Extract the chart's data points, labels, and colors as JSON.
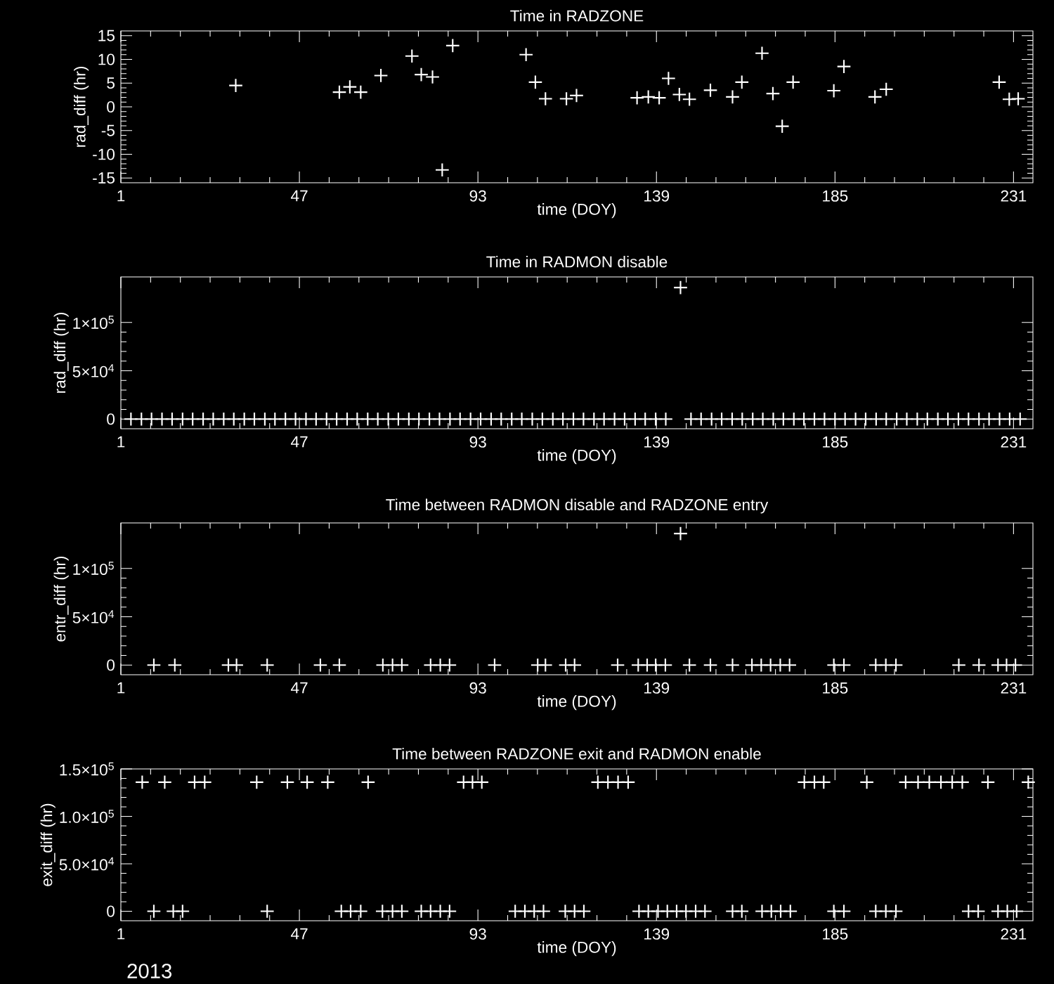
{
  "chart_data": [
    {
      "type": "scatter",
      "title": "Time in RADZONE",
      "xlabel": "time (DOY)",
      "ylabel": "rad_diff (hr)",
      "marker": "cross",
      "xlim": [
        1,
        236
      ],
      "ylim": [
        -16,
        16
      ],
      "xticks": [
        1,
        47,
        93,
        139,
        185,
        231
      ],
      "yticks": [
        -15,
        -10,
        -5,
        0,
        5,
        10,
        15
      ],
      "series": [
        {
          "color": "#ffffff",
          "x": [
            30.6,
            57.3,
            60.0,
            62.8,
            68.0,
            76.0,
            78.4,
            81.3,
            83.8,
            86.5,
            105.4,
            107.8,
            110.4,
            115.8,
            118.4,
            134.0,
            136.9,
            139.7,
            142.1,
            144.9,
            147.5,
            152.9,
            158.6,
            161.0,
            166.2,
            169.0,
            171.4,
            174.2,
            184.7,
            187.3,
            195.3,
            198.2,
            227.3,
            229.9,
            232.2
          ],
          "values": [
            4.5,
            3.1,
            4.2,
            3.1,
            6.6,
            10.7,
            6.8,
            6.3,
            -13.3,
            12.9,
            11.0,
            5.2,
            1.7,
            1.7,
            2.4,
            1.9,
            2.1,
            1.9,
            6.0,
            2.6,
            1.6,
            3.5,
            2.1,
            5.2,
            11.3,
            2.8,
            -4.1,
            5.2,
            3.4,
            8.5,
            2.1,
            3.7,
            5.2,
            1.6,
            1.7
          ]
        }
      ]
    },
    {
      "type": "scatter",
      "title": "Time in RADMON disable",
      "xlabel": "time (DOY)",
      "ylabel": "rad_diff (hr)",
      "marker": "cross",
      "xlim": [
        1,
        236
      ],
      "ylim": [
        -10000,
        147000
      ],
      "xticks": [
        1,
        47,
        93,
        139,
        185,
        231
      ],
      "yticks": [
        0,
        {
          "value": 50000,
          "label": "5×10$^{4}$"
        },
        {
          "value": 100000,
          "label": "1×10$^{5}$"
        }
      ],
      "series": [
        {
          "color": "#ffffff",
          "x": [
            3.6,
            6.3,
            8.9,
            11.6,
            14.2,
            16.9,
            19.5,
            22.2,
            24.8,
            27.5,
            30.1,
            32.8,
            35.4,
            38.1,
            40.7,
            43.4,
            46.0,
            48.7,
            51.3,
            54.0,
            56.6,
            59.3,
            61.9,
            64.6,
            67.2,
            69.9,
            72.5,
            75.2,
            77.8,
            80.5,
            83.1,
            85.8,
            88.4,
            91.1,
            93.7,
            96.4,
            99.0,
            101.7,
            104.3,
            107.0,
            109.6,
            112.3,
            114.9,
            117.6,
            120.2,
            122.9,
            125.5,
            128.2,
            130.8,
            133.5,
            136.1,
            138.8,
            141.4,
            145.2,
            147.9,
            150.5,
            153.2,
            155.8,
            158.5,
            161.1,
            163.8,
            166.4,
            169.1,
            171.7,
            174.4,
            177.0,
            179.7,
            182.3,
            185.0,
            187.6,
            190.3,
            192.9,
            195.6,
            198.2,
            200.9,
            203.5,
            206.2,
            208.8,
            211.5,
            214.1,
            216.8,
            219.4,
            222.1,
            224.7,
            227.4,
            230.0,
            232.7
          ],
          "values": [
            0,
            0,
            0,
            0,
            0,
            0,
            0,
            0,
            0,
            0,
            0,
            0,
            0,
            0,
            0,
            0,
            0,
            0,
            0,
            0,
            0,
            0,
            0,
            0,
            0,
            0,
            0,
            0,
            0,
            0,
            0,
            0,
            0,
            0,
            0,
            0,
            0,
            0,
            0,
            0,
            0,
            0,
            0,
            0,
            0,
            0,
            0,
            0,
            0,
            0,
            0,
            0,
            0,
            136000,
            0,
            0,
            0,
            0,
            0,
            0,
            0,
            0,
            0,
            0,
            0,
            0,
            0,
            0,
            0,
            0,
            0,
            0,
            0,
            0,
            0,
            0,
            0,
            0,
            0,
            0,
            0,
            0,
            0,
            0,
            0,
            0,
            0
          ]
        }
      ]
    },
    {
      "type": "scatter",
      "title": "Time between RADMON disable and RADZONE entry",
      "xlabel": "time (DOY)",
      "ylabel": "entr_diff (hr)",
      "marker": "cross",
      "xlim": [
        1,
        236
      ],
      "ylim": [
        -10000,
        147000
      ],
      "xticks": [
        1,
        47,
        93,
        139,
        185,
        231
      ],
      "yticks": [
        0,
        {
          "value": 50000,
          "label": "5×10$^{4}$"
        },
        {
          "value": 100000,
          "label": "1×10$^{5}$"
        }
      ],
      "series": [
        {
          "color": "#ffffff",
          "x": [
            9.5,
            14.9,
            28.7,
            30.8,
            38.7,
            52.4,
            57.3,
            68.5,
            71.0,
            73.4,
            80.8,
            83.3,
            85.7,
            97.3,
            108.4,
            110.4,
            115.6,
            117.9,
            129.0,
            134.3,
            136.6,
            138.8,
            141.3,
            145.2,
            147.5,
            152.9,
            158.6,
            163.6,
            166.0,
            168.4,
            170.9,
            173.3,
            184.7,
            187.3,
            195.5,
            198.1,
            200.7,
            216.9,
            222.1,
            227.0,
            229.2,
            231.5
          ],
          "values": [
            0,
            0,
            0,
            0,
            0,
            0,
            0,
            0,
            0,
            0,
            0,
            0,
            0,
            0,
            0,
            0,
            0,
            0,
            0,
            0,
            0,
            0,
            0,
            136000,
            0,
            0,
            0,
            0,
            0,
            0,
            0,
            0,
            0,
            0,
            0,
            0,
            0,
            0,
            0,
            0,
            0,
            0
          ]
        }
      ]
    },
    {
      "type": "scatter",
      "title": "Time between RADZONE exit and RADMON enable",
      "xlabel": "time (DOY)",
      "ylabel": "exit_diff (hr)",
      "marker": "cross",
      "xlim": [
        1,
        236
      ],
      "ylim": [
        -10000,
        150000
      ],
      "xticks": [
        1,
        47,
        93,
        139,
        185,
        231
      ],
      "yticks": [
        0,
        {
          "value": 50000,
          "label": "5.0×10$^{4}$"
        },
        {
          "value": 100000,
          "label": "1.0×10$^{5}$"
        },
        {
          "value": 150000,
          "label": "1.5×10$^{5}$"
        }
      ],
      "annotations": [
        "2013"
      ],
      "series": [
        {
          "color": "#ffffff",
          "x": [
            6.5,
            12.3,
            20.0,
            22.6,
            36.0,
            43.9,
            49.0,
            54.3,
            64.7,
            89.3,
            91.6,
            94.0,
            123.9,
            126.5,
            129.1,
            131.7,
            177.1,
            179.7,
            182.1,
            193.2,
            203.2,
            206.4,
            209.3,
            212.3,
            215.2,
            217.8,
            224.4,
            234.8,
            9.5,
            14.5,
            16.9,
            38.7,
            57.8,
            60.2,
            62.8,
            68.4,
            71.0,
            73.4,
            78.4,
            80.8,
            83.3,
            85.7,
            102.6,
            105.1,
            107.5,
            109.9,
            115.5,
            117.9,
            120.3,
            134.5,
            136.9,
            139.4,
            141.8,
            144.2,
            146.6,
            149.1,
            151.5,
            158.6,
            161.0,
            166.2,
            168.6,
            171.0,
            173.5,
            184.7,
            187.3,
            195.5,
            198.1,
            200.7,
            219.4,
            221.9,
            227.0,
            229.4,
            231.8
          ],
          "values": [
            136000,
            136000,
            136000,
            136000,
            136000,
            136000,
            136000,
            136000,
            136000,
            136000,
            136000,
            136000,
            136000,
            136000,
            136000,
            136000,
            136000,
            136000,
            136000,
            136000,
            136000,
            136000,
            136000,
            136000,
            136000,
            136000,
            136000,
            136000,
            0,
            0,
            0,
            0,
            0,
            0,
            0,
            0,
            0,
            0,
            0,
            0,
            0,
            0,
            0,
            0,
            0,
            0,
            0,
            0,
            0,
            0,
            0,
            0,
            0,
            0,
            0,
            0,
            0,
            0,
            0,
            0,
            0,
            0,
            0,
            0,
            0,
            0,
            0,
            0,
            0,
            0,
            0,
            0,
            0
          ]
        }
      ]
    }
  ]
}
